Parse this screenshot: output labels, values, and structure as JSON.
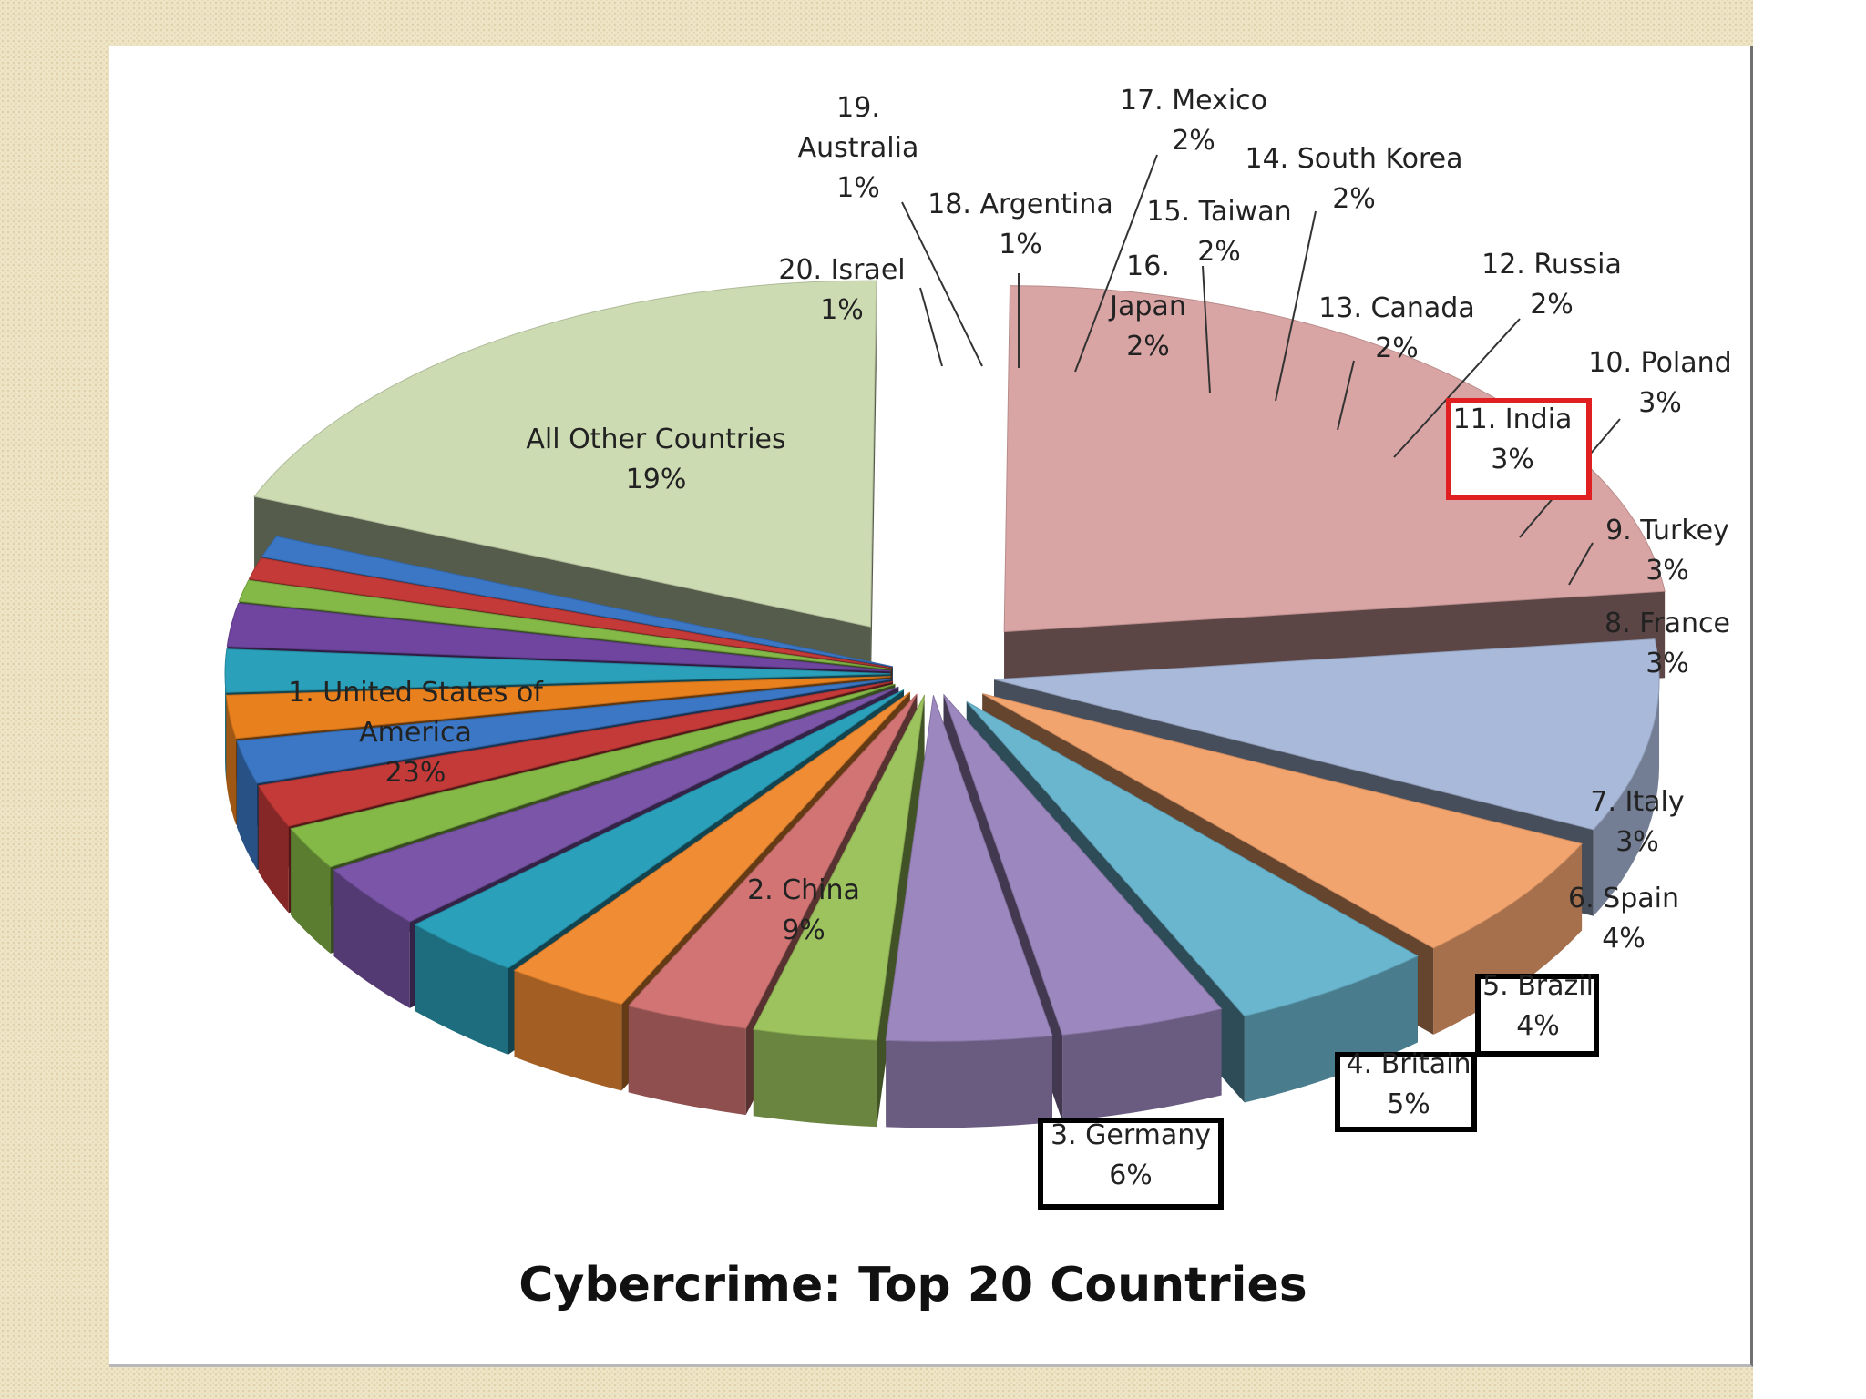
{
  "chart_data": {
    "type": "pie",
    "title": "Cybercrime: Top 20 Countries",
    "slices": [
      {
        "rank": "1.",
        "name": "United States of America",
        "value": 23,
        "label": "23%",
        "color": "#d9a4a4"
      },
      {
        "rank": "2.",
        "name": "China",
        "value": 9,
        "label": "9%",
        "color": "#a9b9d9"
      },
      {
        "rank": "3.",
        "name": "Germany",
        "value": 6,
        "label": "6%",
        "color": "#f2a46f"
      },
      {
        "rank": "4.",
        "name": "Britain",
        "value": 5,
        "label": "5%",
        "color": "#6bb6cf"
      },
      {
        "rank": "5.",
        "name": "Brazil",
        "value": 4,
        "label": "4%",
        "color": "#9c87be"
      },
      {
        "rank": "6.",
        "name": "Spain",
        "value": 4,
        "label": "4%",
        "color": "#9c87be"
      },
      {
        "rank": "7.",
        "name": "Italy",
        "value": 3,
        "label": "3%",
        "color": "#9cc35d"
      },
      {
        "rank": "8.",
        "name": "France",
        "value": 3,
        "label": "3%",
        "color": "#d27474"
      },
      {
        "rank": "9.",
        "name": "Turkey",
        "value": 3,
        "label": "3%",
        "color": "#f08c33"
      },
      {
        "rank": "10.",
        "name": "Poland",
        "value": 3,
        "label": "3%",
        "color": "#2aa0ba"
      },
      {
        "rank": "11.",
        "name": "India",
        "value": 3,
        "label": "3%",
        "color": "#7a55a8"
      },
      {
        "rank": "12.",
        "name": "Russia",
        "value": 2,
        "label": "2%",
        "color": "#84b847"
      },
      {
        "rank": "13.",
        "name": "Canada",
        "value": 2,
        "label": "2%",
        "color": "#c43a38"
      },
      {
        "rank": "14.",
        "name": "South Korea",
        "value": 2,
        "label": "2%",
        "color": "#3b77c4"
      },
      {
        "rank": "15.",
        "name": "Taiwan",
        "value": 2,
        "label": "2%",
        "color": "#e8801e"
      },
      {
        "rank": "16.",
        "name": "Japan",
        "value": 2,
        "label": "2%",
        "color": "#2aa0ba"
      },
      {
        "rank": "17.",
        "name": "Mexico",
        "value": 2,
        "label": "2%",
        "color": "#6f45a0"
      },
      {
        "rank": "18.",
        "name": "Argentina",
        "value": 1,
        "label": "1%",
        "color": "#84b847"
      },
      {
        "rank": "19.",
        "name": "Australia",
        "value": 1,
        "label": "1%",
        "color": "#c43a38"
      },
      {
        "rank": "20.",
        "name": "Israel",
        "value": 1,
        "label": "1%",
        "color": "#3b77c4"
      },
      {
        "rank": "",
        "name": "All Other Countries",
        "value": 19,
        "label": "19%",
        "color": "#cddbb3"
      }
    ],
    "boxed_labels": {
      "India": "#e02020",
      "Germany": "#000000",
      "Britain": "#000000",
      "Brazil": "#000000"
    },
    "legend": "none"
  }
}
